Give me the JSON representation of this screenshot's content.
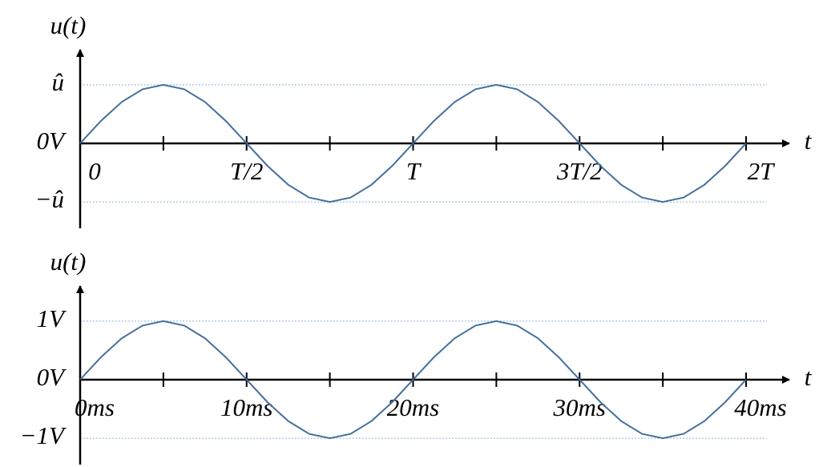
{
  "chart_data": [
    {
      "type": "line",
      "y_label": "u(t)",
      "x_label": "t",
      "x": [
        0,
        0.0625,
        0.125,
        0.1875,
        0.25,
        0.3125,
        0.375,
        0.4375,
        0.5,
        0.5625,
        0.625,
        0.6875,
        0.75,
        0.8125,
        0.875,
        0.9375,
        1,
        1.0625,
        1.125,
        1.1875,
        1.25,
        1.3125,
        1.375,
        1.4375,
        1.5,
        1.5625,
        1.625,
        1.6875,
        1.75,
        1.8125,
        1.875,
        1.9375,
        2
      ],
      "values": [
        0,
        0.383,
        0.707,
        0.924,
        1,
        0.924,
        0.707,
        0.383,
        0,
        -0.383,
        -0.707,
        -0.924,
        -1,
        -0.924,
        -0.707,
        -0.383,
        0,
        0.383,
        0.707,
        0.924,
        1,
        0.924,
        0.707,
        0.383,
        0,
        -0.383,
        -0.707,
        -0.924,
        -1,
        -0.924,
        -0.707,
        -0.383,
        0
      ],
      "color": "#44709d",
      "xlim": [
        0,
        2
      ],
      "xticks": [
        {
          "value": 0,
          "label": "0"
        },
        {
          "value": 0.5,
          "label": "T/2"
        },
        {
          "value": 1,
          "label": "T"
        },
        {
          "value": 1.5,
          "label": "3T/2"
        },
        {
          "value": 2,
          "label": "2T"
        }
      ],
      "ylim": [
        -1.45,
        1.6
      ],
      "yticks": [
        {
          "value": 1,
          "label": "û"
        },
        {
          "value": 0,
          "label": "0V"
        },
        {
          "value": -1,
          "label": "−û"
        }
      ],
      "grid": true
    },
    {
      "type": "line",
      "y_label": "u(t)",
      "x_label": "t",
      "x": [
        0,
        1.25,
        2.5,
        3.75,
        5,
        6.25,
        7.5,
        8.75,
        10,
        11.25,
        12.5,
        13.75,
        15,
        16.25,
        17.5,
        18.75,
        20,
        21.25,
        22.5,
        23.75,
        25,
        26.25,
        27.5,
        28.75,
        30,
        31.25,
        32.5,
        33.75,
        35,
        36.25,
        37.5,
        38.75,
        40
      ],
      "values": [
        0,
        0.383,
        0.707,
        0.924,
        1,
        0.924,
        0.707,
        0.383,
        0,
        -0.383,
        -0.707,
        -0.924,
        -1,
        -0.924,
        -0.707,
        -0.383,
        0,
        0.383,
        0.707,
        0.924,
        1,
        0.924,
        0.707,
        0.383,
        0,
        -0.383,
        -0.707,
        -0.924,
        -1,
        -0.924,
        -0.707,
        -0.383,
        0
      ],
      "color": "#44709d",
      "xlim": [
        0,
        40
      ],
      "xticks": [
        {
          "value": 0,
          "label": "0ms"
        },
        {
          "value": 10,
          "label": "10ms"
        },
        {
          "value": 20,
          "label": "20ms"
        },
        {
          "value": 30,
          "label": "30ms"
        },
        {
          "value": 40,
          "label": "40ms"
        }
      ],
      "ylim": [
        -1.45,
        1.6
      ],
      "yticks": [
        {
          "value": 1,
          "label": "1V"
        },
        {
          "value": 0,
          "label": "0V"
        },
        {
          "value": -1,
          "label": "−1V"
        }
      ],
      "grid": true
    }
  ]
}
